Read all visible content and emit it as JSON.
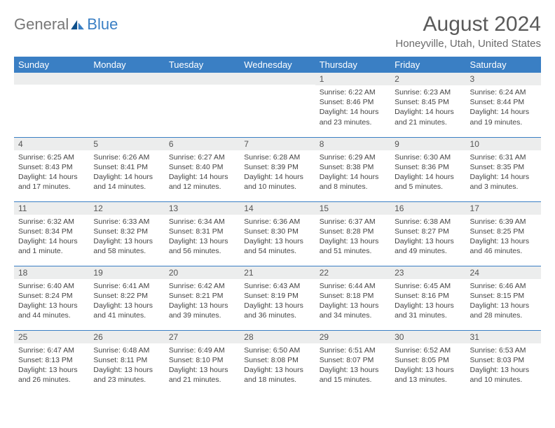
{
  "logo": {
    "general": "General",
    "blue": "Blue"
  },
  "header": {
    "title": "August 2024",
    "location": "Honeyville, Utah, United States"
  },
  "colors": {
    "brand": "#3a7fc4",
    "headerRowBg": "#3a7fc4",
    "dayNumBg": "#eceded",
    "text": "#444"
  },
  "dayNames": [
    "Sunday",
    "Monday",
    "Tuesday",
    "Wednesday",
    "Thursday",
    "Friday",
    "Saturday"
  ],
  "weeks": [
    [
      {
        "n": "",
        "sr": "",
        "ss": "",
        "dl": ""
      },
      {
        "n": "",
        "sr": "",
        "ss": "",
        "dl": ""
      },
      {
        "n": "",
        "sr": "",
        "ss": "",
        "dl": ""
      },
      {
        "n": "",
        "sr": "",
        "ss": "",
        "dl": ""
      },
      {
        "n": "1",
        "sr": "6:22 AM",
        "ss": "8:46 PM",
        "dl": "14 hours and 23 minutes."
      },
      {
        "n": "2",
        "sr": "6:23 AM",
        "ss": "8:45 PM",
        "dl": "14 hours and 21 minutes."
      },
      {
        "n": "3",
        "sr": "6:24 AM",
        "ss": "8:44 PM",
        "dl": "14 hours and 19 minutes."
      }
    ],
    [
      {
        "n": "4",
        "sr": "6:25 AM",
        "ss": "8:43 PM",
        "dl": "14 hours and 17 minutes."
      },
      {
        "n": "5",
        "sr": "6:26 AM",
        "ss": "8:41 PM",
        "dl": "14 hours and 14 minutes."
      },
      {
        "n": "6",
        "sr": "6:27 AM",
        "ss": "8:40 PM",
        "dl": "14 hours and 12 minutes."
      },
      {
        "n": "7",
        "sr": "6:28 AM",
        "ss": "8:39 PM",
        "dl": "14 hours and 10 minutes."
      },
      {
        "n": "8",
        "sr": "6:29 AM",
        "ss": "8:38 PM",
        "dl": "14 hours and 8 minutes."
      },
      {
        "n": "9",
        "sr": "6:30 AM",
        "ss": "8:36 PM",
        "dl": "14 hours and 5 minutes."
      },
      {
        "n": "10",
        "sr": "6:31 AM",
        "ss": "8:35 PM",
        "dl": "14 hours and 3 minutes."
      }
    ],
    [
      {
        "n": "11",
        "sr": "6:32 AM",
        "ss": "8:34 PM",
        "dl": "14 hours and 1 minute."
      },
      {
        "n": "12",
        "sr": "6:33 AM",
        "ss": "8:32 PM",
        "dl": "13 hours and 58 minutes."
      },
      {
        "n": "13",
        "sr": "6:34 AM",
        "ss": "8:31 PM",
        "dl": "13 hours and 56 minutes."
      },
      {
        "n": "14",
        "sr": "6:36 AM",
        "ss": "8:30 PM",
        "dl": "13 hours and 54 minutes."
      },
      {
        "n": "15",
        "sr": "6:37 AM",
        "ss": "8:28 PM",
        "dl": "13 hours and 51 minutes."
      },
      {
        "n": "16",
        "sr": "6:38 AM",
        "ss": "8:27 PM",
        "dl": "13 hours and 49 minutes."
      },
      {
        "n": "17",
        "sr": "6:39 AM",
        "ss": "8:25 PM",
        "dl": "13 hours and 46 minutes."
      }
    ],
    [
      {
        "n": "18",
        "sr": "6:40 AM",
        "ss": "8:24 PM",
        "dl": "13 hours and 44 minutes."
      },
      {
        "n": "19",
        "sr": "6:41 AM",
        "ss": "8:22 PM",
        "dl": "13 hours and 41 minutes."
      },
      {
        "n": "20",
        "sr": "6:42 AM",
        "ss": "8:21 PM",
        "dl": "13 hours and 39 minutes."
      },
      {
        "n": "21",
        "sr": "6:43 AM",
        "ss": "8:19 PM",
        "dl": "13 hours and 36 minutes."
      },
      {
        "n": "22",
        "sr": "6:44 AM",
        "ss": "8:18 PM",
        "dl": "13 hours and 34 minutes."
      },
      {
        "n": "23",
        "sr": "6:45 AM",
        "ss": "8:16 PM",
        "dl": "13 hours and 31 minutes."
      },
      {
        "n": "24",
        "sr": "6:46 AM",
        "ss": "8:15 PM",
        "dl": "13 hours and 28 minutes."
      }
    ],
    [
      {
        "n": "25",
        "sr": "6:47 AM",
        "ss": "8:13 PM",
        "dl": "13 hours and 26 minutes."
      },
      {
        "n": "26",
        "sr": "6:48 AM",
        "ss": "8:11 PM",
        "dl": "13 hours and 23 minutes."
      },
      {
        "n": "27",
        "sr": "6:49 AM",
        "ss": "8:10 PM",
        "dl": "13 hours and 21 minutes."
      },
      {
        "n": "28",
        "sr": "6:50 AM",
        "ss": "8:08 PM",
        "dl": "13 hours and 18 minutes."
      },
      {
        "n": "29",
        "sr": "6:51 AM",
        "ss": "8:07 PM",
        "dl": "13 hours and 15 minutes."
      },
      {
        "n": "30",
        "sr": "6:52 AM",
        "ss": "8:05 PM",
        "dl": "13 hours and 13 minutes."
      },
      {
        "n": "31",
        "sr": "6:53 AM",
        "ss": "8:03 PM",
        "dl": "13 hours and 10 minutes."
      }
    ]
  ],
  "labels": {
    "sunrise": "Sunrise: ",
    "sunset": "Sunset: ",
    "daylight": "Daylight: "
  }
}
